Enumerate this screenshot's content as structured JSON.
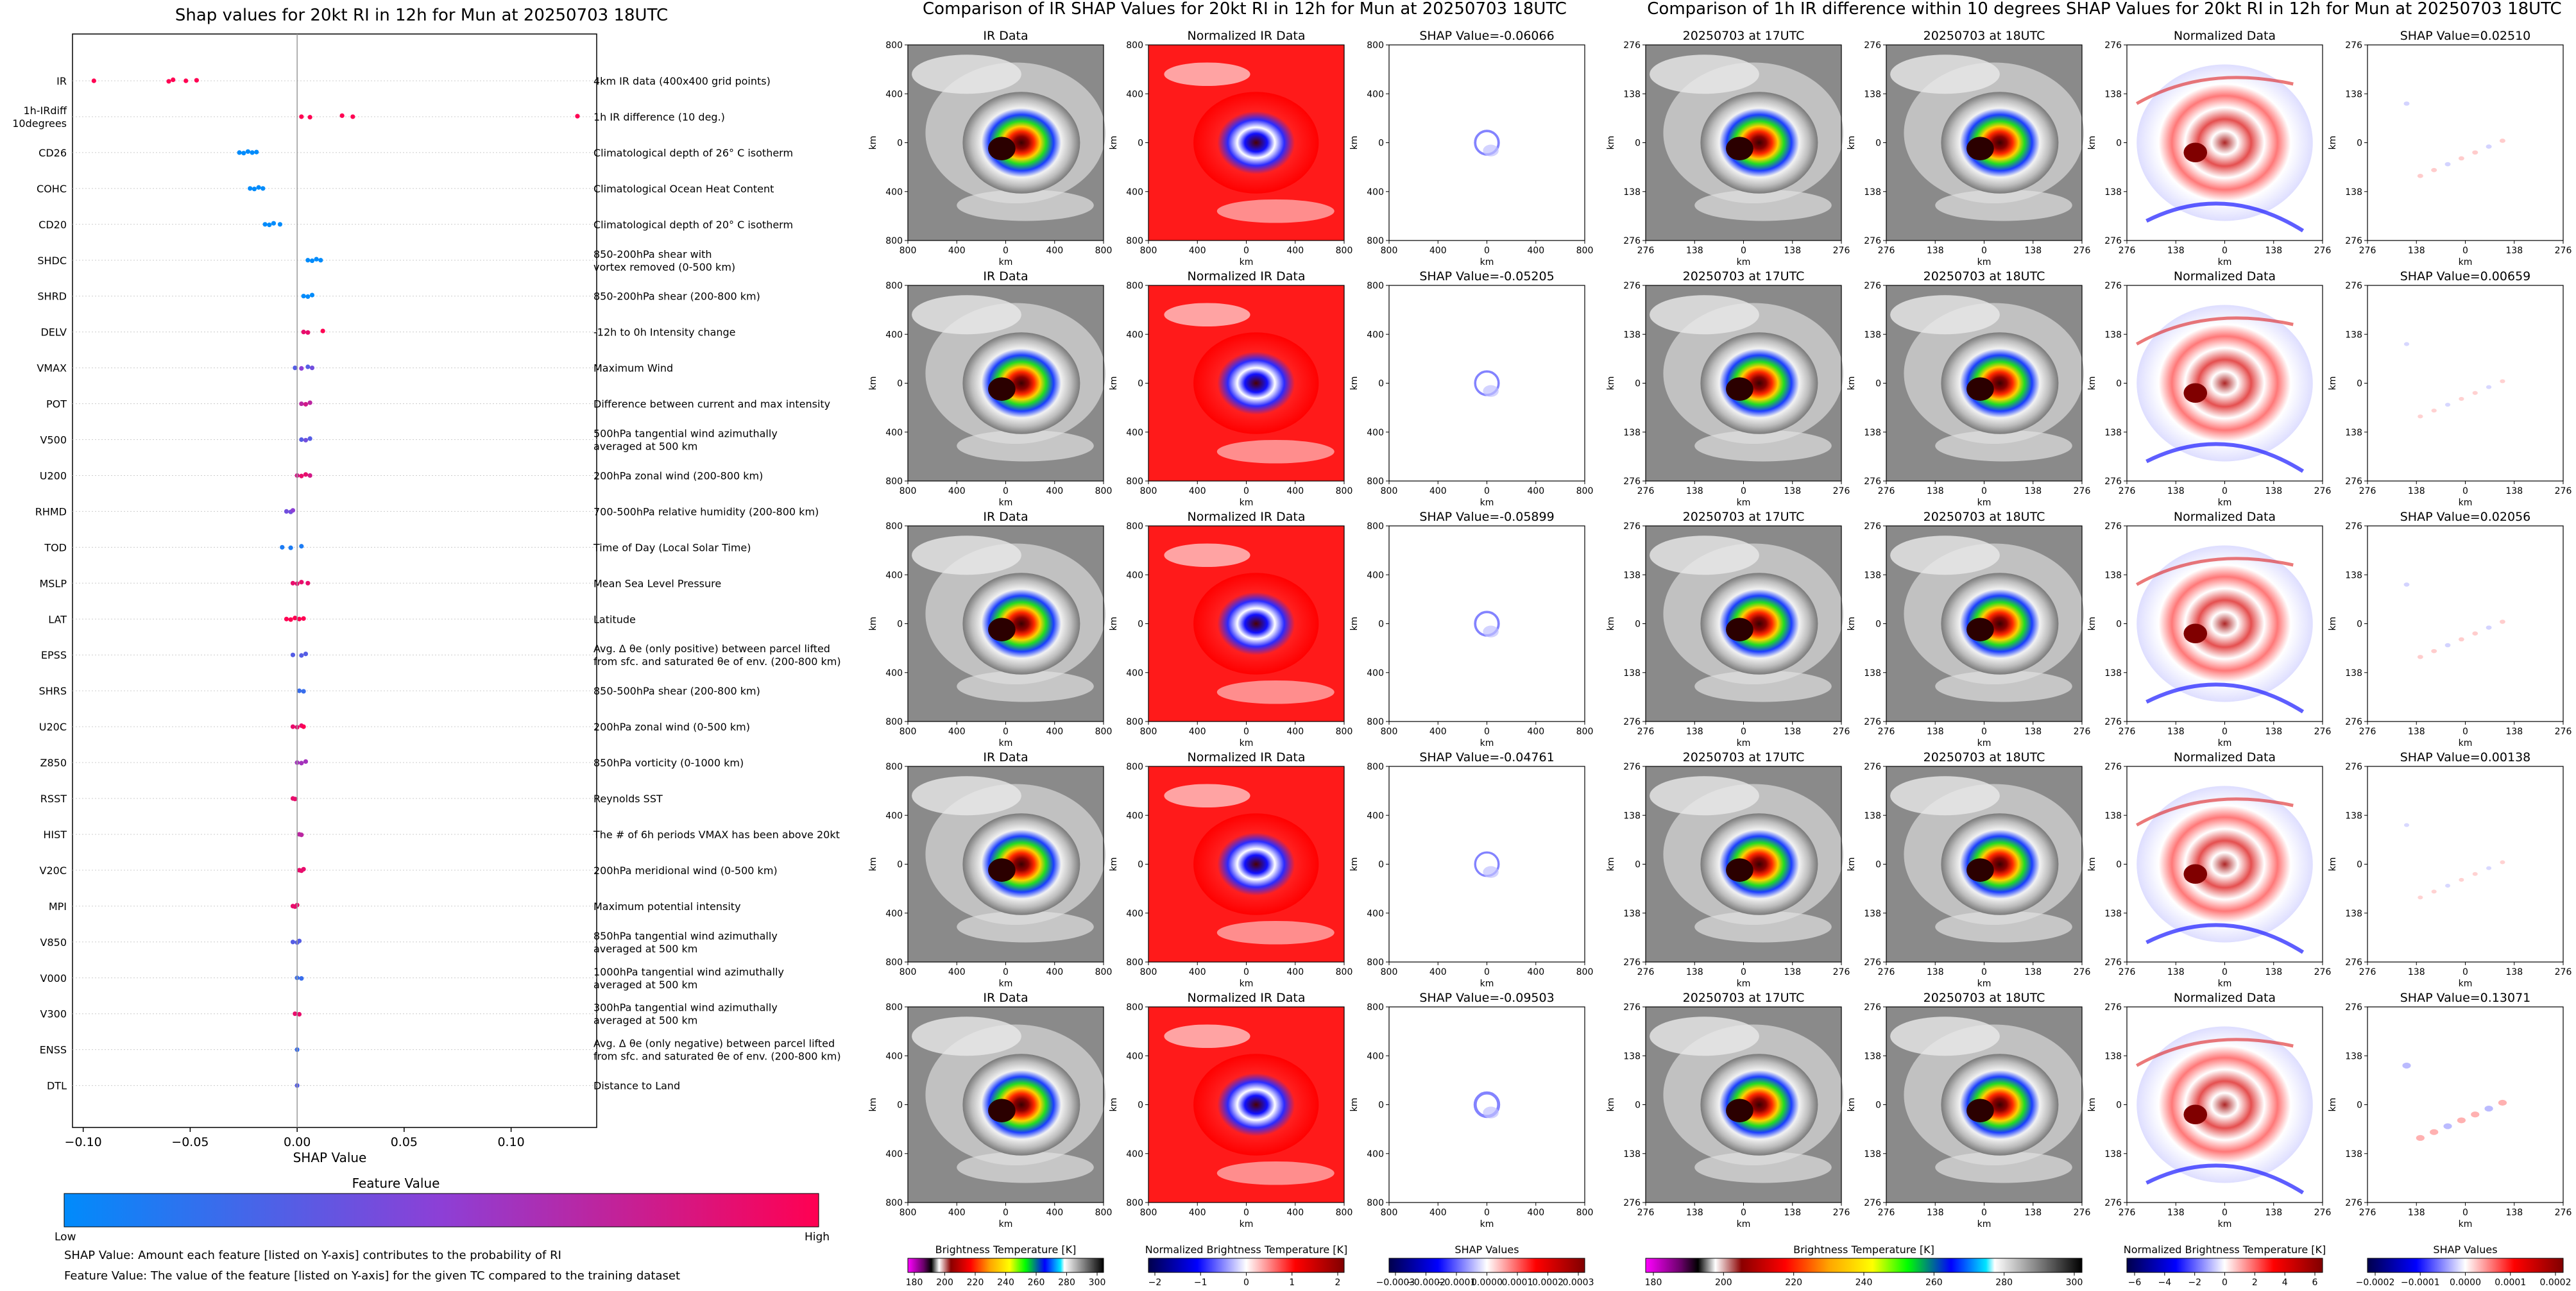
{
  "shap_summary": {
    "title": "Shap values for 20kt RI in 12h for Mun at 20250703 18UTC",
    "xlabel": "SHAP Value",
    "xlim": [
      -0.105,
      0.14
    ],
    "xticks": [
      -0.1,
      -0.05,
      0.0,
      0.05,
      0.1
    ],
    "xtick_labels": [
      "−0.10",
      "−0.05",
      "0.00",
      "0.05",
      "0.10"
    ],
    "colorbar": {
      "title": "Feature Value",
      "low": "Low",
      "high": "High",
      "low_color": "#008bfb",
      "mid_color": "#8d3fd6",
      "high_color": "#ff0052"
    },
    "footnotes": [
      "SHAP Value: Amount each feature [listed on Y-axis] contributes to the probability of RI",
      "Feature Value: The value of the feature [listed on Y-axis] for the given TC compared to the training dataset"
    ]
  },
  "chart_data": [
    {
      "type": "scatter",
      "subtype": "beeswarm",
      "title": "Shap values for 20kt RI in 12h for Mun at 20250703 18UTC",
      "xlabel": "SHAP Value",
      "ylabel": "",
      "xlim": [
        -0.105,
        0.14
      ],
      "features": [
        {
          "code": "IR",
          "desc": [
            "4km IR data (400x400 grid points)"
          ],
          "points": [
            [
              -0.095,
              1
            ],
            [
              -0.06,
              1
            ],
            [
              -0.058,
              1
            ],
            [
              -0.052,
              1
            ],
            [
              -0.047,
              1
            ]
          ]
        },
        {
          "code": "1h-IRdiff\n10degrees",
          "desc": [
            "1h IR difference (10 deg.)"
          ],
          "points": [
            [
              0.002,
              1
            ],
            [
              0.006,
              1
            ],
            [
              0.021,
              1
            ],
            [
              0.026,
              1
            ],
            [
              0.131,
              1
            ]
          ]
        },
        {
          "code": "CD26",
          "desc": [
            "Climatological depth of 26° C isotherm"
          ],
          "points": [
            [
              -0.027,
              0
            ],
            [
              -0.025,
              0
            ],
            [
              -0.023,
              0
            ],
            [
              -0.021,
              0
            ],
            [
              -0.019,
              0
            ]
          ]
        },
        {
          "code": "COHC",
          "desc": [
            "Climatological Ocean Heat Content"
          ],
          "points": [
            [
              -0.022,
              0
            ],
            [
              -0.02,
              0
            ],
            [
              -0.018,
              0
            ],
            [
              -0.016,
              0
            ]
          ]
        },
        {
          "code": "CD20",
          "desc": [
            "Climatological depth of 20° C isotherm"
          ],
          "points": [
            [
              -0.015,
              0
            ],
            [
              -0.013,
              0
            ],
            [
              -0.011,
              0
            ],
            [
              -0.008,
              0
            ]
          ]
        },
        {
          "code": "SHDC",
          "desc": [
            "850-200hPa shear with",
            "vortex removed (0-500 km)"
          ],
          "points": [
            [
              0.005,
              0
            ],
            [
              0.007,
              0
            ],
            [
              0.009,
              0
            ],
            [
              0.011,
              0
            ]
          ]
        },
        {
          "code": "SHRD",
          "desc": [
            "850-200hPa shear (200-800 km)"
          ],
          "points": [
            [
              0.003,
              0
            ],
            [
              0.005,
              0
            ],
            [
              0.007,
              0
            ]
          ]
        },
        {
          "code": "DELV",
          "desc": [
            "-12h to 0h Intensity change"
          ],
          "points": [
            [
              0.003,
              0.9
            ],
            [
              0.005,
              0.9
            ],
            [
              0.012,
              1
            ]
          ]
        },
        {
          "code": "VMAX",
          "desc": [
            "Maximum Wind"
          ],
          "points": [
            [
              -0.001,
              0.3
            ],
            [
              0.002,
              0.5
            ],
            [
              0.005,
              0.3
            ],
            [
              0.007,
              0.4
            ]
          ]
        },
        {
          "code": "POT",
          "desc": [
            "Difference between current and max intensity"
          ],
          "points": [
            [
              0.002,
              0.7
            ],
            [
              0.004,
              0.8
            ],
            [
              0.006,
              0.7
            ]
          ]
        },
        {
          "code": "V500",
          "desc": [
            "500hPa tangential wind azimuthally",
            "averaged at 500 km"
          ],
          "points": [
            [
              0.002,
              0.3
            ],
            [
              0.004,
              0.4
            ],
            [
              0.006,
              0.3
            ]
          ]
        },
        {
          "code": "U200",
          "desc": [
            "200hPa zonal wind (200-800 km)"
          ],
          "points": [
            [
              0.0,
              0.8
            ],
            [
              0.002,
              0.9
            ],
            [
              0.004,
              0.9
            ],
            [
              0.006,
              0.8
            ]
          ]
        },
        {
          "code": "RHMD",
          "desc": [
            "700-500hPa relative humidity (200-800 km)"
          ],
          "points": [
            [
              -0.005,
              0.4
            ],
            [
              -0.003,
              0.4
            ],
            [
              -0.002,
              0.5
            ]
          ]
        },
        {
          "code": "TOD",
          "desc": [
            "Time of Day (Local Solar Time)"
          ],
          "points": [
            [
              -0.007,
              0.1
            ],
            [
              -0.003,
              0.1
            ],
            [
              0.002,
              0.1
            ]
          ]
        },
        {
          "code": "MSLP",
          "desc": [
            "Mean Sea Level Pressure"
          ],
          "points": [
            [
              -0.002,
              0.9
            ],
            [
              0.0,
              0.9
            ],
            [
              0.002,
              0.9
            ],
            [
              0.005,
              0.9
            ]
          ]
        },
        {
          "code": "LAT",
          "desc": [
            "Latitude"
          ],
          "points": [
            [
              -0.005,
              1
            ],
            [
              -0.003,
              1
            ],
            [
              -0.001,
              1
            ],
            [
              0.001,
              1
            ],
            [
              0.003,
              1
            ]
          ]
        },
        {
          "code": "EPSS",
          "desc": [
            "Avg. Δ θe (only positive) between parcel lifted",
            "from sfc. and saturated θe of env. (200-800 km)"
          ],
          "points": [
            [
              -0.002,
              0.3
            ],
            [
              0.002,
              0.3
            ],
            [
              0.004,
              0.3
            ]
          ]
        },
        {
          "code": "SHRS",
          "desc": [
            "850-500hPa shear (200-800 km)"
          ],
          "points": [
            [
              0.001,
              0.2
            ],
            [
              0.003,
              0.2
            ]
          ]
        },
        {
          "code": "U20C",
          "desc": [
            "200hPa zonal wind (0-500 km)"
          ],
          "points": [
            [
              -0.002,
              0.9
            ],
            [
              0.0,
              0.9
            ],
            [
              0.002,
              0.9
            ],
            [
              0.003,
              1
            ]
          ]
        },
        {
          "code": "Z850",
          "desc": [
            "850hPa vorticity (0-1000 km)"
          ],
          "points": [
            [
              0.0,
              0.6
            ],
            [
              0.002,
              0.6
            ],
            [
              0.004,
              0.6
            ]
          ]
        },
        {
          "code": "RSST",
          "desc": [
            "Reynolds SST"
          ],
          "points": [
            [
              -0.002,
              0.9
            ],
            [
              -0.001,
              0.9
            ]
          ]
        },
        {
          "code": "HIST",
          "desc": [
            "The # of 6h periods VMAX has been above 20kt"
          ],
          "points": [
            [
              0.001,
              0.7
            ],
            [
              0.002,
              0.7
            ]
          ]
        },
        {
          "code": "V20C",
          "desc": [
            "200hPa meridional wind (0-500 km)"
          ],
          "points": [
            [
              0.001,
              0.9
            ],
            [
              0.002,
              0.9
            ],
            [
              0.003,
              0.9
            ]
          ]
        },
        {
          "code": "MPI",
          "desc": [
            "Maximum potential intensity"
          ],
          "points": [
            [
              -0.002,
              0.9
            ],
            [
              -0.001,
              0.9
            ],
            [
              0.0,
              0.9
            ]
          ]
        },
        {
          "code": "V850",
          "desc": [
            "850hPa tangential wind azimuthally",
            "averaged at 500 km"
          ],
          "points": [
            [
              -0.002,
              0.3
            ],
            [
              0.0,
              0.3
            ],
            [
              0.001,
              0.3
            ]
          ]
        },
        {
          "code": "V000",
          "desc": [
            "1000hPa tangential wind azimuthally",
            "averaged at 500 km"
          ],
          "points": [
            [
              0.0,
              0.2
            ],
            [
              0.002,
              0.2
            ]
          ]
        },
        {
          "code": "V300",
          "desc": [
            "300hPa tangential wind azimuthally",
            "averaged at 500 km"
          ],
          "points": [
            [
              -0.001,
              0.9
            ],
            [
              0.001,
              0.9
            ]
          ]
        },
        {
          "code": "ENSS",
          "desc": [
            "Avg. Δ θe (only negative) between parcel lifted",
            "from sfc. and saturated θe of env. (200-800 km)"
          ],
          "points": [
            [
              0.0,
              0.2
            ]
          ]
        },
        {
          "code": "DTL",
          "desc": [
            "Distance to Land"
          ],
          "points": [
            [
              0.0,
              0.3
            ]
          ]
        }
      ]
    },
    {
      "type": "heatmap",
      "title": "Comparison of IR SHAP Values for 20kt RI in 12h for Mun at 20250703 18UTC",
      "columns": [
        "IR Data",
        "Normalized IR Data",
        "SHAP"
      ],
      "rows": 5,
      "shap_titles": [
        "SHAP Value=-0.06066",
        "SHAP Value=-0.05205",
        "SHAP Value=-0.05899",
        "SHAP Value=-0.04761",
        "SHAP Value=-0.09503"
      ],
      "ylabel": "km",
      "xlabel": "km",
      "xticks": [
        "800",
        "400",
        "0",
        "400",
        "800"
      ],
      "yticks": [
        "800",
        "400",
        "0",
        "400",
        "800"
      ],
      "colorbars": [
        {
          "label": "Brightness Temperature [K]",
          "ticks": [
            "180",
            "200",
            "220",
            "240",
            "260",
            "280",
            "300"
          ]
        },
        {
          "label": "Normalized Brightness Temperature [K]",
          "ticks": [
            "−2",
            "−1",
            "0",
            "1",
            "2"
          ]
        },
        {
          "label": "SHAP Values",
          "ticks": [
            "−0.0003",
            "−0.0002",
            "−0.0001",
            "0.0000",
            "0.0001",
            "0.0002",
            "0.0003"
          ]
        }
      ]
    },
    {
      "type": "heatmap",
      "title": "Comparison of 1h IR difference within 10 degrees SHAP Values for 20kt RI in 12h for Mun at 20250703 18UTC",
      "columns": [
        "20250703 at 17UTC",
        "20250703 at 18UTC",
        "Normalized Data",
        "SHAP"
      ],
      "rows": 5,
      "shap_titles": [
        "SHAP Value=0.02510",
        "SHAP Value=0.00659",
        "SHAP Value=0.02056",
        "SHAP Value=0.00138",
        "SHAP Value=0.13071"
      ],
      "ylabel": "km",
      "xlabel": "km",
      "xticks": [
        "276",
        "138",
        "0",
        "138",
        "276"
      ],
      "yticks": [
        "276",
        "138",
        "0",
        "138",
        "276"
      ],
      "colorbars": [
        {
          "label": "Brightness Temperature [K]",
          "ticks": [
            "180",
            "200",
            "220",
            "240",
            "260",
            "280",
            "300"
          ]
        },
        {
          "label": "Normalized Brightness Temperature [K]",
          "ticks": [
            "−6",
            "−4",
            "−2",
            "0",
            "2",
            "4",
            "6"
          ]
        },
        {
          "label": "SHAP Values",
          "ticks": [
            "−0.0002",
            "−0.0001",
            "0.0000",
            "0.0001",
            "0.0002"
          ]
        }
      ]
    }
  ]
}
